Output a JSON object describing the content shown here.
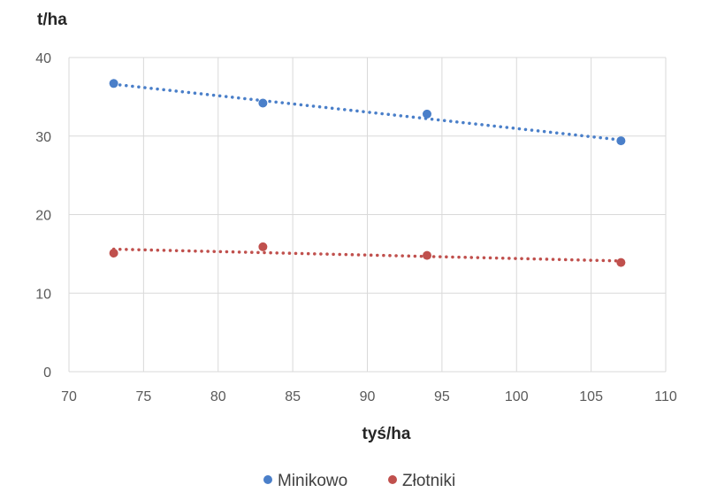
{
  "chart_data": {
    "type": "scatter",
    "ylabel": "t/ha",
    "xlabel": "tyś/ha",
    "xlim": [
      70,
      110
    ],
    "ylim": [
      0,
      40
    ],
    "xticks": [
      70,
      75,
      80,
      85,
      90,
      95,
      100,
      105,
      110
    ],
    "yticks": [
      0,
      10,
      20,
      30,
      40
    ],
    "grid": true,
    "legend_position": "bottom",
    "series": [
      {
        "name": "Minikowo",
        "color": "#4a7fc9",
        "x": [
          73,
          83,
          94,
          107
        ],
        "y": [
          36.7,
          34.2,
          32.8,
          29.4
        ],
        "trendline": {
          "type": "linear",
          "style": "dotted",
          "x": [
            73,
            107
          ],
          "y": [
            36.6,
            29.5
          ]
        }
      },
      {
        "name": "Złotniki",
        "color": "#c0504d",
        "x": [
          73,
          83,
          94,
          107
        ],
        "y": [
          15.1,
          15.9,
          14.8,
          13.9
        ],
        "trendline": {
          "type": "linear",
          "style": "dotted",
          "x": [
            73,
            107
          ],
          "y": [
            15.6,
            14.1
          ]
        }
      }
    ]
  }
}
